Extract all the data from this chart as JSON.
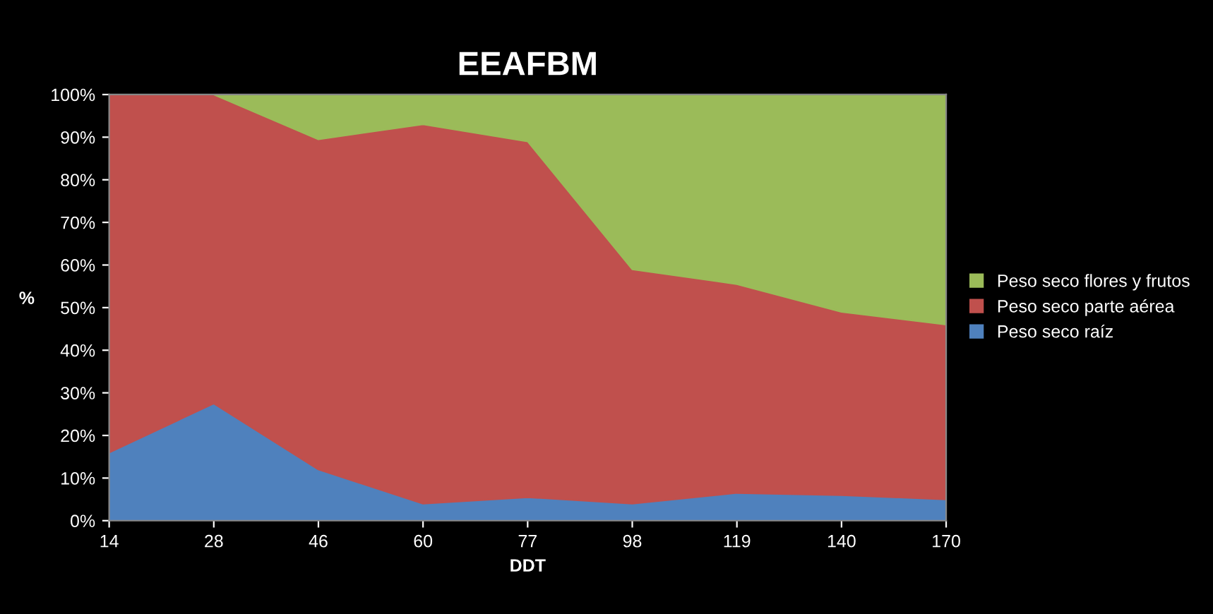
{
  "chart_data": {
    "type": "area",
    "stacked": true,
    "title": "EEAFBM",
    "xlabel": "DDT",
    "ylabel": "%",
    "categories": [
      "14",
      "28",
      "46",
      "60",
      "77",
      "98",
      "119",
      "140",
      "170"
    ],
    "series": [
      {
        "name": "Peso seco raíz",
        "color": "#4f81bd",
        "values": [
          16,
          27.5,
          12,
          4,
          5.5,
          4,
          6.5,
          6,
          5
        ]
      },
      {
        "name": "Peso seco parte aérea",
        "color": "#c0504d",
        "values": [
          84,
          72.5,
          77.5,
          89,
          83.5,
          55,
          49,
          43,
          41
        ]
      },
      {
        "name": "Peso seco flores y frutos",
        "color": "#9bbb59",
        "values": [
          0,
          0,
          10.5,
          7,
          11,
          41,
          44.5,
          51,
          54
        ]
      }
    ],
    "ylim": [
      0,
      100
    ],
    "yticks": [
      {
        "value": 0,
        "label": "0%"
      },
      {
        "value": 10,
        "label": "10%"
      },
      {
        "value": 20,
        "label": "20%"
      },
      {
        "value": 30,
        "label": "30%"
      },
      {
        "value": 40,
        "label": "40%"
      },
      {
        "value": 50,
        "label": "50%"
      },
      {
        "value": 60,
        "label": "60%"
      },
      {
        "value": 70,
        "label": "70%"
      },
      {
        "value": 80,
        "label": "80%"
      },
      {
        "value": 90,
        "label": "90%"
      },
      {
        "value": 100,
        "label": "100%"
      }
    ],
    "grid": false,
    "legend": "right"
  }
}
